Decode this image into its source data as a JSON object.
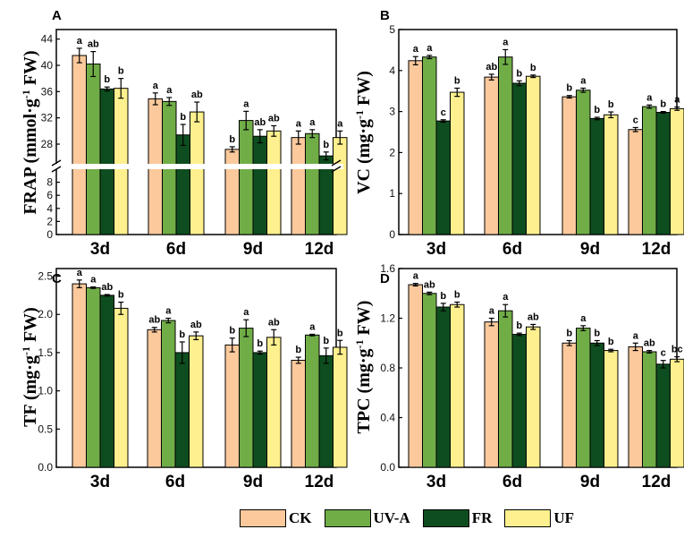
{
  "colors": {
    "CK": "#FCC99C",
    "UV-A": "#70AD47",
    "FR": "#0E4D1F",
    "UF": "#FEF08E"
  },
  "legend": {
    "items": [
      "CK",
      "UV-A",
      "FR",
      "UF"
    ]
  },
  "chart_data": [
    {
      "panel": "A",
      "type": "bar",
      "ylabel": "FRAP (mmol·g-1 FW)",
      "categories": [
        "3d",
        "6d",
        "9d",
        "12d"
      ],
      "axis_break": true,
      "lower_range": [
        0,
        10
      ],
      "lower_ticks": [
        "0",
        "2",
        "4",
        "6",
        "8"
      ],
      "upper_range": [
        25,
        44.5
      ],
      "upper_ticks": [
        "28",
        "32",
        "36",
        "40",
        "44"
      ],
      "series": [
        {
          "name": "CK",
          "values": [
            41.5,
            34.9,
            27.2,
            29.0
          ],
          "errors": [
            1.1,
            0.9,
            0.4,
            1.0
          ],
          "labels": [
            "a",
            "a",
            "b",
            "a"
          ]
        },
        {
          "name": "UV-A",
          "values": [
            40.2,
            34.5,
            31.6,
            29.6
          ],
          "errors": [
            1.9,
            0.6,
            1.4,
            0.6
          ],
          "labels": [
            "ab",
            "a",
            "a",
            "a"
          ]
        },
        {
          "name": "FR",
          "values": [
            36.4,
            29.4,
            29.2,
            26.2
          ],
          "errors": [
            0.3,
            1.6,
            1.0,
            0.6
          ],
          "labels": [
            "b",
            "b",
            "ab",
            "b"
          ]
        },
        {
          "name": "UF",
          "values": [
            36.5,
            32.9,
            30.0,
            29.0
          ],
          "errors": [
            1.5,
            1.5,
            0.8,
            1.0
          ],
          "labels": [
            "b",
            "ab",
            "ab",
            "a"
          ]
        }
      ]
    },
    {
      "panel": "B",
      "type": "bar",
      "ylabel": "VC (mg·g-1 FW)",
      "categories": [
        "3d",
        "6d",
        "9d",
        "12d"
      ],
      "ylim": [
        0,
        5
      ],
      "yticks": [
        "0",
        "1",
        "2",
        "3",
        "4",
        "5"
      ],
      "series": [
        {
          "name": "CK",
          "values": [
            4.24,
            3.84,
            3.36,
            2.56
          ],
          "errors": [
            0.1,
            0.07,
            0.03,
            0.05
          ],
          "labels": [
            "a",
            "ab",
            "b",
            "c"
          ]
        },
        {
          "name": "UV-A",
          "values": [
            4.33,
            4.33,
            3.52,
            3.12
          ],
          "errors": [
            0.04,
            0.18,
            0.05,
            0.04
          ],
          "labels": [
            "a",
            "a",
            "a",
            "a"
          ]
        },
        {
          "name": "FR",
          "values": [
            2.77,
            3.69,
            2.83,
            2.98
          ],
          "errors": [
            0.03,
            0.06,
            0.03,
            0.02
          ],
          "labels": [
            "c",
            "b",
            "b",
            "b"
          ]
        },
        {
          "name": "UF",
          "values": [
            3.47,
            3.86,
            2.92,
            3.07
          ],
          "errors": [
            0.1,
            0.03,
            0.07,
            0.04
          ],
          "labels": [
            "b",
            "b",
            "b",
            "a"
          ]
        }
      ]
    },
    {
      "panel": "C",
      "type": "bar",
      "ylabel": "TF (mg·g-1 FW)",
      "categories": [
        "3d",
        "6d",
        "9d",
        "12d"
      ],
      "ylim": [
        0,
        2.6
      ],
      "yticks": [
        "0.0",
        "0.5",
        "1.0",
        "1.5",
        "2.0",
        "2.5"
      ],
      "series": [
        {
          "name": "CK",
          "values": [
            2.4,
            1.8,
            1.6,
            1.4
          ],
          "errors": [
            0.05,
            0.03,
            0.09,
            0.04
          ],
          "labels": [
            "a",
            "ab",
            "b",
            "b"
          ]
        },
        {
          "name": "UV-A",
          "values": [
            2.35,
            1.92,
            1.82,
            1.73
          ],
          "errors": [
            0.01,
            0.03,
            0.11,
            0.01
          ],
          "labels": [
            "a",
            "a",
            "a",
            "a"
          ]
        },
        {
          "name": "FR",
          "values": [
            2.25,
            1.5,
            1.5,
            1.46
          ],
          "errors": [
            0.01,
            0.14,
            0.02,
            0.1
          ],
          "labels": [
            "ab",
            "b",
            "b",
            "b"
          ]
        },
        {
          "name": "UF",
          "values": [
            2.08,
            1.72,
            1.7,
            1.57
          ],
          "errors": [
            0.08,
            0.05,
            0.1,
            0.09
          ],
          "labels": [
            "b",
            "ab",
            "ab",
            "b"
          ]
        }
      ]
    },
    {
      "panel": "D",
      "type": "bar",
      "ylabel": "TPC (mg·g-1 FW)",
      "categories": [
        "3d",
        "6d",
        "9d",
        "12d"
      ],
      "ylim": [
        0,
        1.6
      ],
      "yticks": [
        "0.0",
        "0.4",
        "0.8",
        "1.2",
        "1.6"
      ],
      "series": [
        {
          "name": "CK",
          "values": [
            1.47,
            1.17,
            1.0,
            0.97
          ],
          "errors": [
            0.01,
            0.03,
            0.02,
            0.03
          ],
          "labels": [
            "a",
            "a",
            "b",
            "a"
          ]
        },
        {
          "name": "UV-A",
          "values": [
            1.4,
            1.26,
            1.12,
            0.93
          ],
          "errors": [
            0.01,
            0.05,
            0.02,
            0.01
          ],
          "labels": [
            "ab",
            "a",
            "a",
            "ab"
          ]
        },
        {
          "name": "FR",
          "values": [
            1.29,
            1.07,
            1.0,
            0.83
          ],
          "errors": [
            0.03,
            0.01,
            0.02,
            0.03
          ],
          "labels": [
            "b",
            "b",
            "b",
            "c"
          ]
        },
        {
          "name": "UF",
          "values": [
            1.31,
            1.13,
            0.94,
            0.87
          ],
          "errors": [
            0.02,
            0.02,
            0.01,
            0.02
          ],
          "labels": [
            "b",
            "ab",
            "b",
            "bc"
          ]
        }
      ]
    }
  ]
}
